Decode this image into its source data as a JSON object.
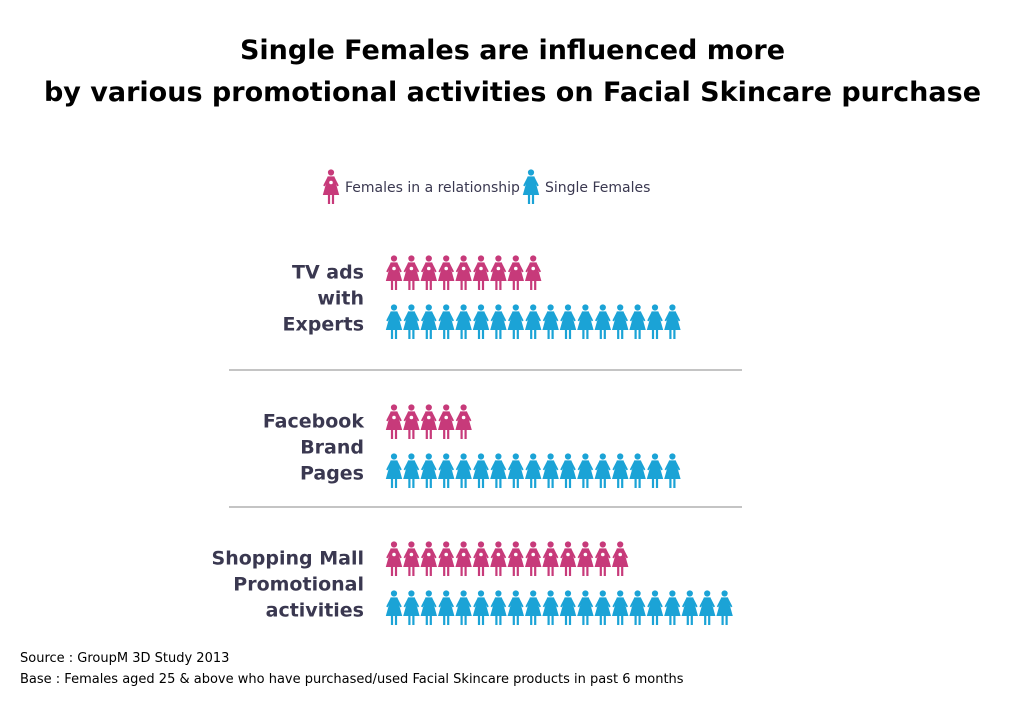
{
  "title": {
    "line1": "Single Females are influenced more",
    "line2": "by various promotional activities on Facial Skincare purchase"
  },
  "legend": {
    "placement": "top-center",
    "items": [
      {
        "label": "Females in a relationship",
        "icon": "female-figure-icon",
        "color": "#c73a7a"
      },
      {
        "label": "Single Females",
        "icon": "female-figure-icon",
        "color": "#1ba3d6"
      }
    ]
  },
  "chart_data": {
    "type": "bar",
    "style": "pictogram",
    "categories": [
      [
        "TV ads",
        "with",
        "Experts"
      ],
      [
        "Facebook",
        "Brand",
        "Pages"
      ],
      [
        "Shopping Mall",
        "Promotional",
        "activities"
      ]
    ],
    "series": [
      {
        "name": "Females in a relationship",
        "color": "#c73a7a",
        "values": [
          9,
          5,
          14
        ]
      },
      {
        "name": "Single Females",
        "color": "#1ba3d6",
        "values": [
          17,
          17,
          20
        ]
      }
    ],
    "grid": false
  },
  "footer": {
    "source": "Source : GroupM 3D Study 2013",
    "base": "Base : Females aged 25 & above who have purchased/used Facial Skincare products in past 6 months"
  }
}
